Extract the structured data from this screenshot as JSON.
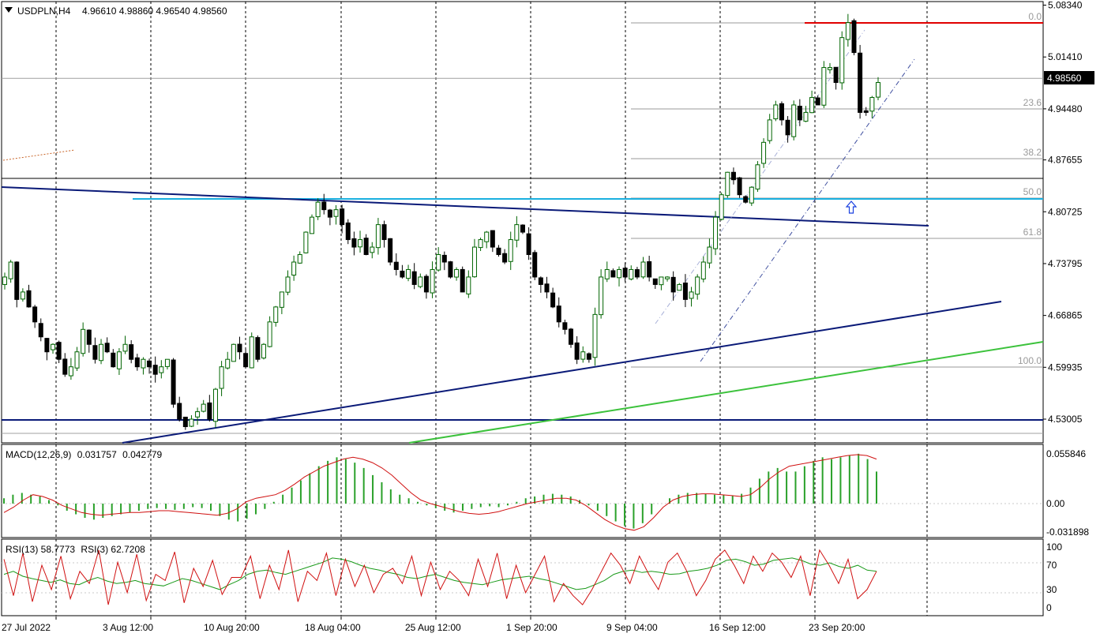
{
  "window": {
    "symbol": "USDPLN,H4",
    "ohlc": "4.96610 4.98860 4.96540 4.98560",
    "current_price": "4.98560"
  },
  "colors": {
    "bull_candle": "#006400",
    "bear_candle": "#000000",
    "grid": "#000000",
    "fib_lines": "#9a9a9a",
    "trend_navy": "#0a1a78",
    "support_cyan": "#1ab0e0",
    "trend_green": "#3cc23c",
    "high_red": "#e00000",
    "macd_hist": "#2aa12a",
    "macd_signal": "#d01010",
    "rsi13": "#1a9a1a",
    "rsi3": "#d01010",
    "arrow": "#1a40e0"
  },
  "icons": {
    "symbol_menu": "triangle-down-icon",
    "signal_arrow": "up-arrow-icon"
  },
  "chart_data": [
    {
      "type": "candlestick",
      "symbol": "USDPLN",
      "timeframe": "H4",
      "ylim": [
        4.495,
        5.09
      ],
      "y_ticks": [
        "5.08340",
        "5.01410",
        "4.94480",
        "4.87655",
        "4.80725",
        "4.73795",
        "4.66865",
        "4.59935",
        "4.53005"
      ],
      "x_tick_labels": [
        "27 Jul 2022",
        "3 Aug 12:00",
        "10 Aug 20:00",
        "18 Aug 04:00",
        "25 Aug 12:00",
        "1 Sep 20:00",
        "9 Sep 04:00",
        "16 Sep 12:00",
        "23 Sep 20:00"
      ],
      "close_path": [
        4.72,
        4.74,
        4.69,
        4.7,
        4.68,
        4.66,
        4.64,
        4.62,
        4.63,
        4.61,
        4.59,
        4.6,
        4.62,
        4.65,
        4.63,
        4.61,
        4.63,
        4.62,
        4.6,
        4.62,
        4.63,
        4.61,
        4.6,
        4.61,
        4.6,
        4.59,
        4.6,
        4.61,
        4.55,
        4.53,
        4.52,
        4.53,
        4.54,
        4.55,
        4.53,
        4.57,
        4.6,
        4.61,
        4.63,
        4.62,
        4.6,
        4.64,
        4.61,
        4.63,
        4.66,
        4.68,
        4.7,
        4.72,
        4.74,
        4.75,
        4.78,
        4.8,
        4.82,
        4.81,
        4.8,
        4.81,
        4.79,
        4.77,
        4.76,
        4.77,
        4.75,
        4.76,
        4.79,
        4.77,
        4.74,
        4.73,
        4.72,
        4.73,
        4.71,
        4.72,
        4.7,
        4.73,
        4.75,
        4.74,
        4.72,
        4.73,
        4.7,
        4.72,
        4.76,
        4.77,
        4.78,
        4.76,
        4.75,
        4.74,
        4.77,
        4.79,
        4.78,
        4.75,
        4.72,
        4.71,
        4.7,
        4.68,
        4.66,
        4.65,
        4.63,
        4.61,
        4.62,
        4.61,
        4.67,
        4.72,
        4.73,
        4.72,
        4.73,
        4.72,
        4.73,
        4.72,
        4.74,
        4.72,
        4.71,
        4.72,
        4.72,
        4.7,
        4.71,
        4.69,
        4.7,
        4.72,
        4.74,
        4.76,
        4.8,
        4.83,
        4.86,
        4.85,
        4.83,
        4.82,
        4.84,
        4.87,
        4.9,
        4.93,
        4.95,
        4.93,
        4.91,
        4.95,
        4.93,
        4.94,
        4.96,
        4.95,
        5.0,
        5.0,
        4.98,
        5.04,
        5.06,
        5.02,
        4.94,
        4.94,
        4.96,
        4.98
      ]
    },
    {
      "type": "line",
      "name": "MACD(12,26,9)",
      "value_labels": [
        "0.031757",
        "0.042779"
      ],
      "y_ticks": [
        "0.055846",
        "0.00",
        "-0.031898"
      ],
      "histogram": [
        0.006,
        0.01,
        0.012,
        0.01,
        0.008,
        0.004,
        -0.002,
        -0.008,
        -0.012,
        -0.016,
        -0.018,
        -0.016,
        -0.014,
        -0.012,
        -0.01,
        -0.008,
        -0.006,
        -0.005,
        -0.006,
        -0.007,
        -0.006,
        -0.004,
        -0.005,
        -0.008,
        -0.014,
        -0.018,
        -0.02,
        -0.017,
        -0.012,
        -0.006,
        0.002,
        0.01,
        0.018,
        0.026,
        0.034,
        0.042,
        0.048,
        0.052,
        0.05,
        0.046,
        0.04,
        0.032,
        0.024,
        0.016,
        0.01,
        0.006,
        0.002,
        -0.002,
        -0.005,
        -0.008,
        -0.01,
        -0.008,
        -0.006,
        -0.004,
        -0.003,
        -0.004,
        -0.002,
        0.002,
        0.006,
        0.008,
        0.01,
        0.011,
        0.01,
        0.008,
        0.004,
        -0.002,
        -0.008,
        -0.014,
        -0.02,
        -0.025,
        -0.028,
        -0.022,
        -0.012,
        0.0,
        0.006,
        0.01,
        0.012,
        0.012,
        0.011,
        0.01,
        0.01,
        0.009,
        0.011,
        0.018,
        0.028,
        0.036,
        0.04,
        0.036,
        0.036,
        0.042,
        0.048,
        0.052,
        0.05,
        0.052,
        0.054,
        0.056,
        0.05,
        0.036
      ],
      "signal": [
        -0.01,
        -0.004,
        0.004,
        0.01,
        0.008,
        0.004,
        -0.002,
        -0.006,
        -0.01,
        -0.012,
        -0.013,
        -0.012,
        -0.011,
        -0.01,
        -0.01,
        -0.009,
        -0.008,
        -0.008,
        -0.009,
        -0.01,
        -0.011,
        -0.012,
        -0.013,
        -0.011,
        -0.006,
        0.002,
        0.006,
        0.008,
        0.01,
        0.015,
        0.022,
        0.03,
        0.036,
        0.042,
        0.046,
        0.05,
        0.052,
        0.05,
        0.046,
        0.04,
        0.032,
        0.022,
        0.012,
        0.004,
        0.0,
        -0.003,
        -0.006,
        -0.009,
        -0.011,
        -0.012,
        -0.011,
        -0.009,
        -0.006,
        -0.003,
        0.0,
        0.002,
        0.004,
        0.006,
        0.006,
        0.004,
        -0.002,
        -0.01,
        -0.018,
        -0.024,
        -0.028,
        -0.03,
        -0.026,
        -0.016,
        -0.004,
        0.004,
        0.008,
        0.01,
        0.011,
        0.011,
        0.01,
        0.009,
        0.008,
        0.01,
        0.018,
        0.028,
        0.036,
        0.042,
        0.044,
        0.046,
        0.048,
        0.05,
        0.052,
        0.054,
        0.055,
        0.054,
        0.05
      ]
    },
    {
      "type": "line",
      "series_labels": [
        "RSI(13) 58.7773",
        "RSI(3) 62.7208"
      ],
      "y_ticks": [
        "100",
        "70",
        "30",
        "0"
      ],
      "ylim": [
        0,
        100
      ],
      "rsi13": [
        55,
        60,
        52,
        48,
        45,
        42,
        46,
        40,
        38,
        45,
        50,
        44,
        40,
        42,
        45,
        40,
        38,
        36,
        42,
        48,
        45,
        40,
        35,
        30,
        38,
        45,
        55,
        60,
        62,
        58,
        55,
        60,
        65,
        70,
        75,
        82,
        80,
        76,
        70,
        65,
        62,
        58,
        55,
        50,
        48,
        52,
        55,
        50,
        45,
        42,
        40,
        38,
        42,
        46,
        48,
        50,
        52,
        48,
        45,
        40,
        35,
        30,
        32,
        38,
        45,
        55,
        60,
        62,
        58,
        60,
        58,
        55,
        56,
        60,
        62,
        65,
        70,
        78,
        80,
        76,
        70,
        72,
        78,
        80,
        82,
        78,
        72,
        70,
        74,
        68,
        65,
        70,
        62,
        60
      ],
      "rsi3": [
        80,
        20,
        90,
        10,
        70,
        30,
        85,
        15,
        60,
        40,
        95,
        5,
        75,
        25,
        88,
        12,
        55,
        45,
        92,
        8,
        65,
        35,
        78,
        22,
        50,
        50,
        85,
        15,
        70,
        30,
        95,
        10,
        60,
        45,
        90,
        20,
        80,
        35,
        70,
        25,
        55,
        65,
        40,
        85,
        20,
        75,
        30,
        60,
        45,
        20,
        80,
        35,
        90,
        15,
        70,
        25,
        55,
        85,
        10,
        40,
        20,
        5,
        30,
        60,
        90,
        70,
        40,
        85,
        55,
        30,
        75,
        90,
        60,
        20,
        45,
        80,
        95,
        70,
        40,
        85,
        60,
        90,
        75,
        50,
        85,
        20,
        95,
        70,
        40,
        80,
        15,
        30,
        60
      ]
    }
  ],
  "fibonacci": {
    "levels": [
      "0.0",
      "23.6",
      "38.2",
      "50.0",
      "61.8",
      "100.0"
    ],
    "prices": [
      5.06,
      4.953,
      4.8865,
      4.833,
      4.7795,
      4.605
    ]
  }
}
